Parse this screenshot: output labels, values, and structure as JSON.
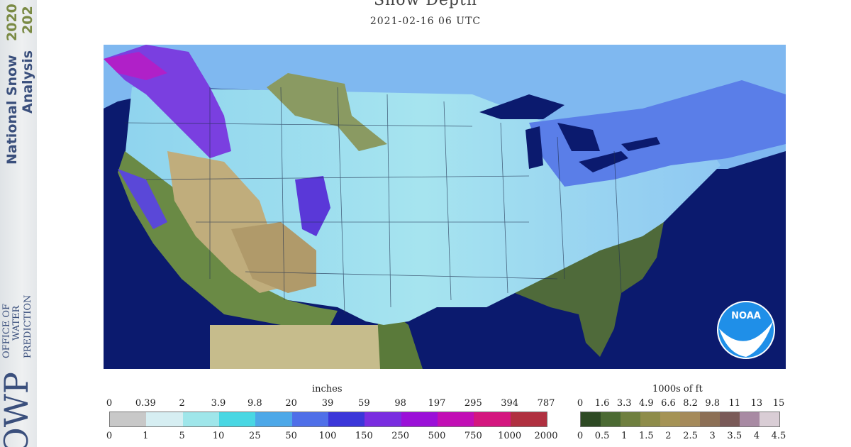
{
  "sidebar": {
    "title_line1": "National Snow",
    "title_line2": "Analysis",
    "year1": "2020",
    "year2": "202",
    "office_line1": "OFFICE OF",
    "office_line2": "WATER",
    "office_line3": "PREDICTION",
    "logo_text": "OWP"
  },
  "header": {
    "title": "Snow Depth",
    "timestamp": "2021-02-16 06 UTC"
  },
  "noaa_logo_text": "NOAA",
  "legend_depth": {
    "unit": "inches",
    "top_ticks": [
      "0",
      "0.39",
      "2",
      "3.9",
      "9.8",
      "20",
      "39",
      "59",
      "98",
      "197",
      "295",
      "394",
      "787"
    ],
    "bottom_ticks": [
      "0",
      "1",
      "5",
      "10",
      "25",
      "50",
      "100",
      "150",
      "250",
      "500",
      "750",
      "1000",
      "2000"
    ],
    "colors": [
      "#c8c8c8",
      "#d6eef2",
      "#9fe6ea",
      "#49d7e3",
      "#4da8e8",
      "#4f6fe8",
      "#3b36d9",
      "#7a2de0",
      "#9b10d8",
      "#c20eb5",
      "#d4167f",
      "#b03040"
    ]
  },
  "legend_elev": {
    "unit": "1000s of ft",
    "top_ticks": [
      "0",
      "1.6",
      "3.3",
      "4.9",
      "6.6",
      "8.2",
      "9.8",
      "11",
      "13",
      "15"
    ],
    "bottom_ticks": [
      "0",
      "0.5",
      "1",
      "1.5",
      "2",
      "2.5",
      "3",
      "3.5",
      "4",
      "4.5"
    ],
    "colors": [
      "#2e4a24",
      "#4b6a33",
      "#6f7f3f",
      "#8e8c4a",
      "#a59355",
      "#a58a5a",
      "#8c6f55",
      "#7a5a58",
      "#a88aa3",
      "#d9cdd5"
    ]
  }
}
